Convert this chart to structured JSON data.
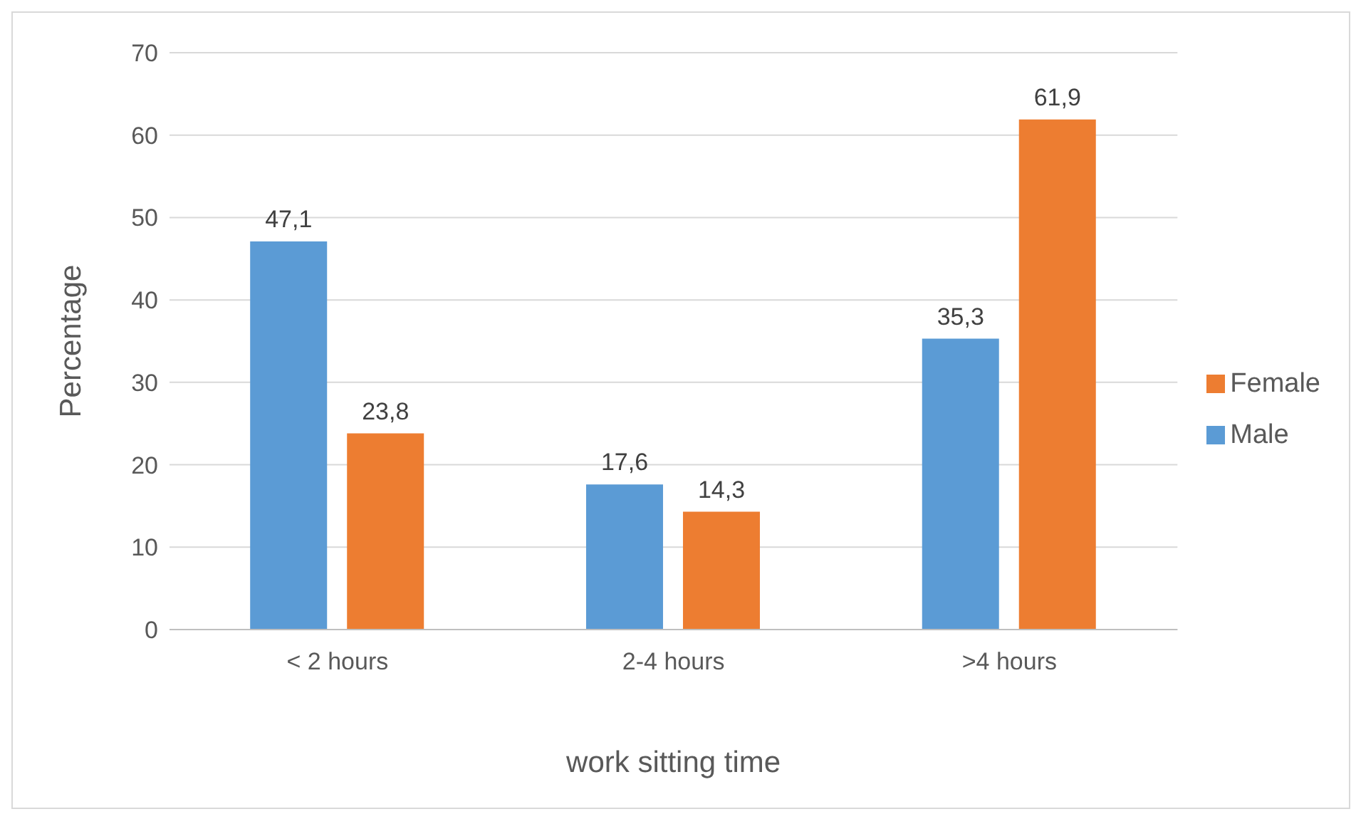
{
  "chart_data": {
    "type": "bar",
    "xlabel": "work sitting time",
    "ylabel": "Percentage",
    "categories": [
      "< 2 hours",
      "2-4 hours",
      ">4 hours"
    ],
    "series": [
      {
        "name": "Male",
        "color": "#5b9bd5",
        "values": [
          47.1,
          17.6,
          35.3
        ],
        "value_labels": [
          "47,1",
          "17,6",
          "35,3"
        ]
      },
      {
        "name": "Female",
        "color": "#ed7d31",
        "values": [
          23.8,
          14.3,
          61.9
        ],
        "value_labels": [
          "23,8",
          "14,3",
          "61,9"
        ]
      }
    ],
    "ylim": [
      0,
      70
    ],
    "yticks": [
      0,
      10,
      20,
      30,
      40,
      50,
      60,
      70
    ],
    "grid": "y",
    "legend": "right"
  }
}
